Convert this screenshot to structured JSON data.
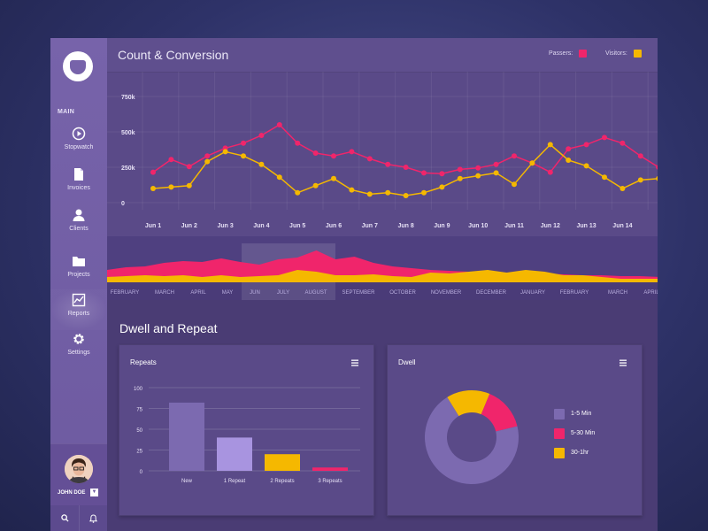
{
  "sidebar": {
    "section_label": "MAIN",
    "items": [
      {
        "label": "Stopwatch",
        "icon": "stopwatch-icon"
      },
      {
        "label": "Invoices",
        "icon": "document-icon"
      },
      {
        "label": "Clients",
        "icon": "user-icon"
      },
      {
        "label": "Projects",
        "icon": "folder-icon"
      },
      {
        "label": "Reports",
        "icon": "chart-icon",
        "active": true
      },
      {
        "label": "Settings",
        "icon": "gear-icon"
      }
    ],
    "user": {
      "name": "JOHN DOE"
    }
  },
  "header": {
    "title": "Count & Conversion",
    "legend": [
      {
        "label": "Passers:",
        "color": "#f0256b"
      },
      {
        "label": "Visitors:",
        "color": "#f5b800"
      }
    ]
  },
  "colors": {
    "passers": "#f0256b",
    "visitors": "#f5b800",
    "purple": "#7c6ab0",
    "light_purple": "#a894e0"
  },
  "timeline": {
    "months": [
      "FEBRUARY",
      "MARCH",
      "APRIL",
      "MAY",
      "JUN",
      "JULY",
      "AUGUST",
      "SEPTEMBER",
      "OCTOBER",
      "NOVEMBER",
      "DECEMBER",
      "JANUARY",
      "FEBRUARY",
      "MARCH",
      "APRIL"
    ],
    "selected_range": [
      "JUN",
      "AUGUST"
    ]
  },
  "dwell_repeat": {
    "section_title": "Dwell and Repeat",
    "repeats_title": "Repeats",
    "dwell_title": "Dwell",
    "dwell_legend": [
      {
        "label": "1-5 Min",
        "color": "#7c6ab0"
      },
      {
        "label": "5-30 Min",
        "color": "#f0256b"
      },
      {
        "label": "30-1hr",
        "color": "#f5b800"
      }
    ]
  },
  "chart_data": [
    {
      "type": "line",
      "title": "Count & Conversion",
      "categories": [
        "Jun 1",
        "Jun 2",
        "Jun 3",
        "Jun 4",
        "Jun 5",
        "Jun 6",
        "Jun 7",
        "Jun 8",
        "Jun 9",
        "Jun 10",
        "Jun 11",
        "Jun 12",
        "Jun 13",
        "Jun 14"
      ],
      "y_ticks": [
        "750k",
        "500k",
        "250k",
        "0"
      ],
      "ylim": [
        0,
        750
      ],
      "series": [
        {
          "name": "Passers",
          "color": "#f0256b",
          "x": [
            0,
            0.5,
            1,
            1.5,
            2,
            2.5,
            3,
            3.5,
            4,
            4.5,
            5,
            5.5,
            6,
            6.5,
            7,
            7.5,
            8,
            8.5,
            9,
            9.5,
            10,
            10.5,
            11,
            11.5,
            12,
            12.5,
            13,
            13.5,
            14
          ],
          "values": [
            215,
            305,
            255,
            330,
            385,
            420,
            475,
            550,
            420,
            350,
            330,
            360,
            310,
            270,
            250,
            210,
            205,
            235,
            245,
            270,
            330,
            280,
            215,
            380,
            410,
            460,
            420,
            330,
            250
          ]
        },
        {
          "name": "Visitors",
          "color": "#f5b800",
          "x": [
            0,
            0.5,
            1,
            1.5,
            2,
            2.5,
            3,
            3.5,
            4,
            4.5,
            5,
            5.5,
            6,
            6.5,
            7,
            7.5,
            8,
            8.5,
            9,
            9.5,
            10,
            10.5,
            11,
            11.5,
            12,
            12.5,
            13,
            13.5,
            14
          ],
          "values": [
            100,
            110,
            120,
            290,
            360,
            330,
            270,
            180,
            70,
            120,
            170,
            90,
            60,
            70,
            50,
            70,
            110,
            170,
            190,
            210,
            130,
            280,
            410,
            300,
            260,
            180,
            100,
            160,
            170
          ]
        }
      ]
    },
    {
      "type": "bar",
      "title": "Repeats",
      "categories": [
        "New",
        "1 Repeat",
        "2 Repeats",
        "3 Repeats"
      ],
      "values": [
        82,
        40,
        20,
        4
      ],
      "colors": [
        "#7c6ab0",
        "#a894e0",
        "#f5b800",
        "#f0256b"
      ],
      "y_ticks": [
        100,
        75,
        50,
        25,
        0
      ],
      "ylim": [
        0,
        100
      ]
    },
    {
      "type": "pie",
      "title": "Dwell",
      "labels": [
        "1-5 Min",
        "5-30 Min",
        "30-1hr"
      ],
      "values": [
        70,
        15,
        15
      ],
      "colors": [
        "#7c6ab0",
        "#f0256b",
        "#f5b800"
      ]
    }
  ]
}
